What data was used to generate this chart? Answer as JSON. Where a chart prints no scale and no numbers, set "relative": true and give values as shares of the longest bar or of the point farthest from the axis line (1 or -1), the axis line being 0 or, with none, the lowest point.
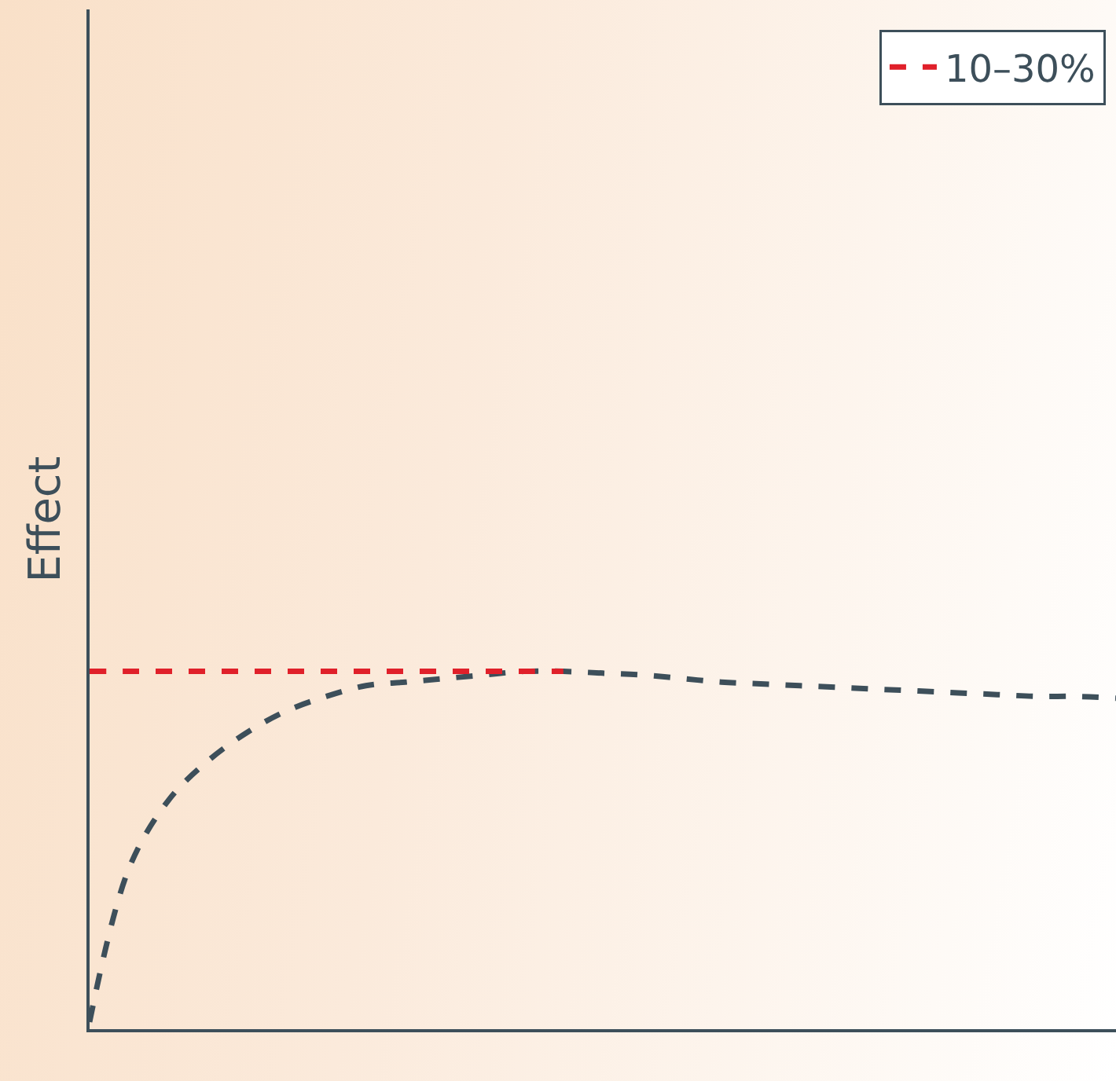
{
  "chart_data": {
    "type": "line",
    "relative": true,
    "ylabel": "Effect",
    "legend": "top right",
    "line_style": "dashed",
    "categories": [
      null,
      null,
      null,
      null,
      null,
      null,
      null,
      null,
      null,
      null,
      null,
      null,
      null,
      null,
      null,
      null,
      null,
      null,
      null,
      null,
      null,
      null,
      null,
      null,
      null,
      null,
      null
    ],
    "series": [
      {
        "color": "#3d4f5a",
        "values": [
          0.02,
          0.45,
          0.64,
          0.75,
          0.83,
          0.89,
          0.93,
          0.96,
          0.97,
          0.98,
          0.99,
          1.0,
          1.0,
          0.995,
          0.99,
          0.98,
          0.97,
          0.965,
          0.96,
          0.955,
          0.95,
          0.945,
          0.94,
          0.935,
          0.93,
          0.93,
          0.925
        ]
      },
      {
        "name": "10–30%",
        "color": "#e0202a",
        "values": [
          1.0,
          1.0,
          1.0,
          1.0,
          1.0,
          1.0,
          1.0,
          1.0,
          1.0,
          1.0,
          1.0,
          1.0,
          1.0,
          null,
          null,
          null,
          null,
          null,
          null,
          null,
          null,
          null,
          null,
          null,
          null,
          null,
          null
        ]
      }
    ]
  }
}
